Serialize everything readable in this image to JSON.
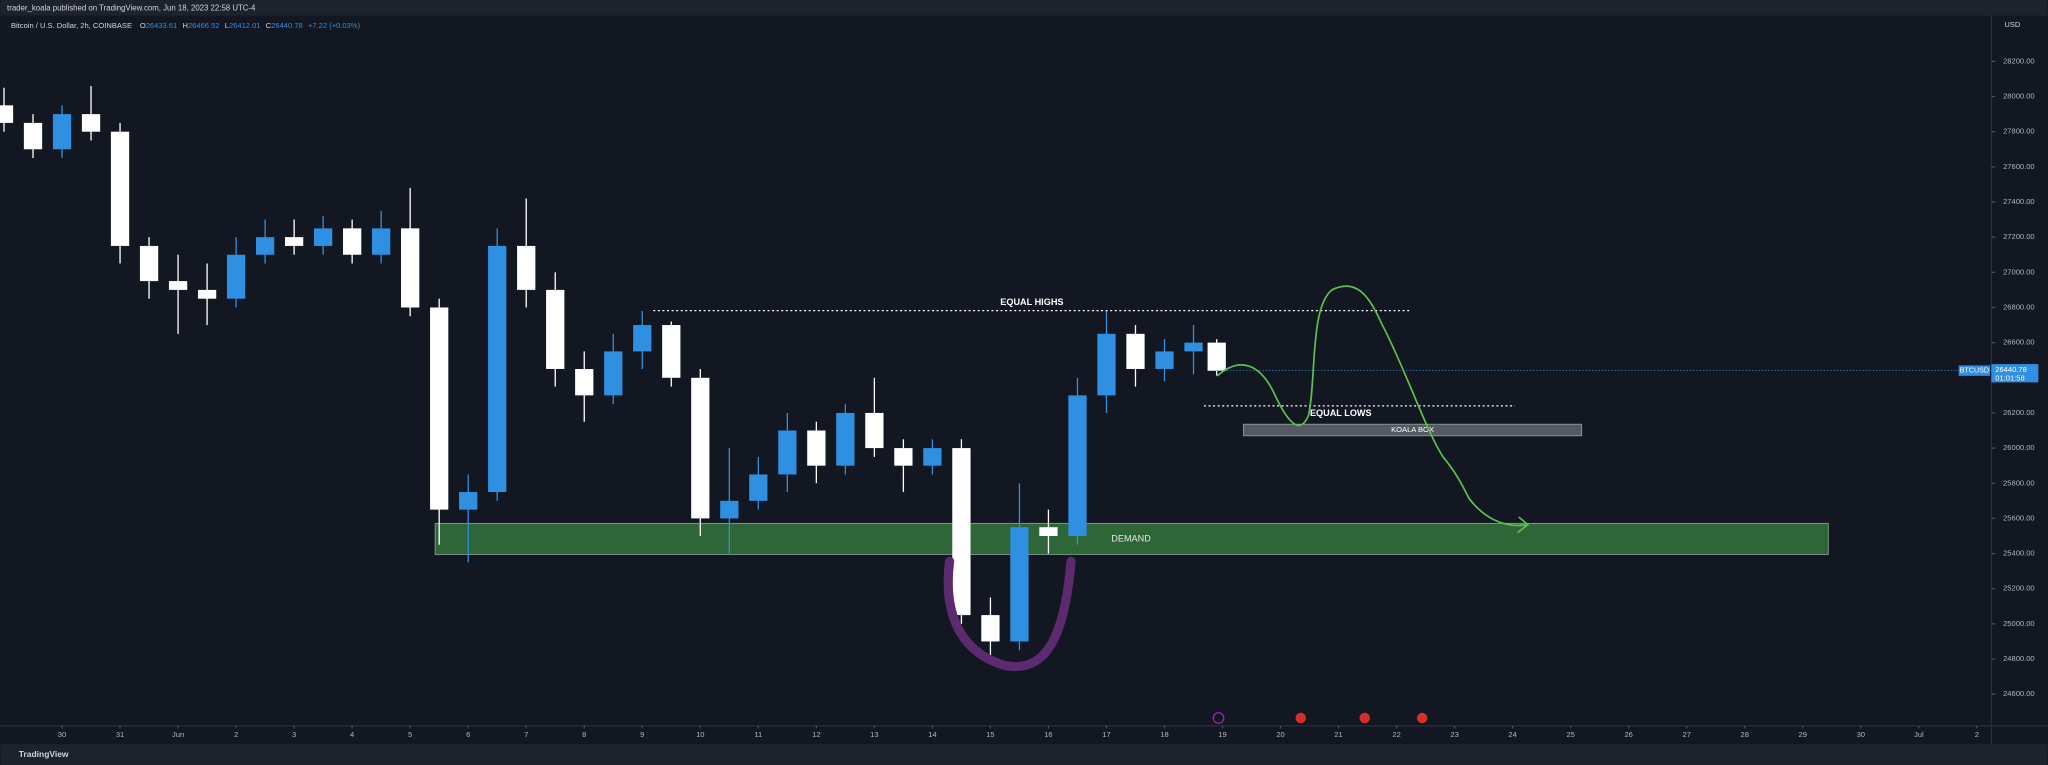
{
  "header": {
    "publisher": "trader_koala published on TradingView.com, Jun 18, 2023 22:58 UTC-4",
    "brand": "TradingView"
  },
  "chart_data": {
    "type": "candlestick",
    "title": "Bitcoin / U.S. Dollar, 2h, COINBASE",
    "legend": [
      {
        "label": "O",
        "value": "26433.61"
      },
      {
        "label": "H",
        "value": "26466.52"
      },
      {
        "label": "L",
        "value": "26412.01"
      },
      {
        "label": "C",
        "value": "26440.78"
      }
    ],
    "change": "+7.22 (+0.03%)",
    "currency": "USD",
    "symbol": "BTCUSD",
    "last_price": 26440.78,
    "countdown": "01:01:58",
    "up_color": "#2f8fe0",
    "down_color": "#ffffff",
    "xlim": [
      -1.06,
      33.25
    ],
    "ylim": [
      24420,
      28460
    ],
    "x": [
      -1,
      -0.5,
      0,
      0.5,
      1,
      1.5,
      2,
      2.5,
      3,
      3.5,
      4,
      4.5,
      5,
      5.5,
      6,
      6.5,
      7,
      7.5,
      8,
      8.5,
      9,
      9.5,
      10,
      10.5,
      11,
      11.5,
      12,
      12.5,
      13,
      13.5,
      14,
      14.5,
      15,
      15.5,
      16,
      16.5,
      17,
      17.5,
      18,
      18.5,
      19,
      19.5,
      19.9
    ],
    "ohlc": [
      [
        27950,
        28050,
        27800,
        27850
      ],
      [
        27850,
        27900,
        27650,
        27700
      ],
      [
        27700,
        27950,
        27650,
        27900
      ],
      [
        27900,
        28060,
        27750,
        27800
      ],
      [
        27800,
        27850,
        27050,
        27150
      ],
      [
        27150,
        27200,
        26850,
        26950
      ],
      [
        26950,
        27100,
        26650,
        26900
      ],
      [
        26900,
        27050,
        26700,
        26850
      ],
      [
        26850,
        27200,
        26800,
        27100
      ],
      [
        27100,
        27300,
        27050,
        27200
      ],
      [
        27200,
        27300,
        27100,
        27150
      ],
      [
        27150,
        27320,
        27100,
        27250
      ],
      [
        27250,
        27300,
        27050,
        27100
      ],
      [
        27100,
        27350,
        27050,
        27250
      ],
      [
        27250,
        27480,
        26750,
        26800
      ],
      [
        26800,
        26850,
        25450,
        25650
      ],
      [
        25650,
        25850,
        25350,
        25750
      ],
      [
        25750,
        27250,
        25700,
        27150
      ],
      [
        27150,
        27420,
        26800,
        26900
      ],
      [
        26900,
        27000,
        26350,
        26450
      ],
      [
        26450,
        26550,
        26150,
        26300
      ],
      [
        26300,
        26650,
        26250,
        26550
      ],
      [
        26550,
        26780,
        26450,
        26700
      ],
      [
        26700,
        26720,
        26350,
        26400
      ],
      [
        26400,
        26450,
        25500,
        25600
      ],
      [
        25600,
        26000,
        25400,
        25700
      ],
      [
        25700,
        25950,
        25650,
        25850
      ],
      [
        25850,
        26200,
        25750,
        26100
      ],
      [
        26100,
        26150,
        25800,
        25900
      ],
      [
        25900,
        26250,
        25850,
        26200
      ],
      [
        26200,
        26400,
        25950,
        26000
      ],
      [
        26000,
        26050,
        25750,
        25900
      ],
      [
        25900,
        26050,
        25850,
        26000
      ],
      [
        26000,
        26050,
        25000,
        25050
      ],
      [
        25050,
        25150,
        24800,
        24900
      ],
      [
        24900,
        25800,
        24850,
        25550
      ],
      [
        25550,
        25650,
        25400,
        25500
      ],
      [
        25500,
        26400,
        25450,
        26300
      ],
      [
        26300,
        26780,
        26200,
        26650
      ],
      [
        26650,
        26700,
        26350,
        26450
      ],
      [
        26450,
        26620,
        26380,
        26550
      ],
      [
        26550,
        26700,
        26420,
        26600
      ],
      [
        26600,
        26620,
        26412,
        26440
      ]
    ],
    "yticks": [
      {
        "value": 24600,
        "label": "24600.00"
      },
      {
        "value": 24800,
        "label": "24800.00"
      },
      {
        "value": 25000,
        "label": "25000.00"
      },
      {
        "value": 25200,
        "label": "25200.00"
      },
      {
        "value": 25400,
        "label": "25400.00"
      },
      {
        "value": 25600,
        "label": "25600.00"
      },
      {
        "value": 25800,
        "label": "25800.00"
      },
      {
        "value": 26000,
        "label": "26000.00"
      },
      {
        "value": 26200,
        "label": "26200.00"
      },
      {
        "value": 26400,
        "label": "26400.00"
      },
      {
        "value": 26600,
        "label": "26600.00"
      },
      {
        "value": 26800,
        "label": "26800.00"
      },
      {
        "value": 27000,
        "label": "27000.00"
      },
      {
        "value": 27200,
        "label": "27200.00"
      },
      {
        "value": 27400,
        "label": "27400.00"
      },
      {
        "value": 27600,
        "label": "27600.00"
      },
      {
        "value": 27800,
        "label": "27800.00"
      },
      {
        "value": 28000,
        "label": "28000.00"
      },
      {
        "value": 28200,
        "label": "28200.00"
      }
    ],
    "xticks": [
      {
        "value": 0,
        "label": "30"
      },
      {
        "value": 1,
        "label": "31"
      },
      {
        "value": 2,
        "label": "Jun"
      },
      {
        "value": 3,
        "label": "2"
      },
      {
        "value": 4,
        "label": "3"
      },
      {
        "value": 5,
        "label": "4"
      },
      {
        "value": 6,
        "label": "5"
      },
      {
        "value": 7,
        "label": "6"
      },
      {
        "value": 8,
        "label": "7"
      },
      {
        "value": 9,
        "label": "8"
      },
      {
        "value": 10,
        "label": "9"
      },
      {
        "value": 11,
        "label": "10"
      },
      {
        "value": 12,
        "label": "11"
      },
      {
        "value": 13,
        "label": "12"
      },
      {
        "value": 14,
        "label": "13"
      },
      {
        "value": 15,
        "label": "14"
      },
      {
        "value": 16,
        "label": "15"
      },
      {
        "value": 17,
        "label": "16"
      },
      {
        "value": 18,
        "label": "17"
      },
      {
        "value": 19,
        "label": "18"
      },
      {
        "value": 20,
        "label": "19"
      },
      {
        "value": 21,
        "label": "20"
      },
      {
        "value": 22,
        "label": "21"
      },
      {
        "value": 23,
        "label": "22"
      },
      {
        "value": 24,
        "label": "23"
      },
      {
        "value": 25,
        "label": "24"
      },
      {
        "value": 26,
        "label": "25"
      },
      {
        "value": 27,
        "label": "26"
      },
      {
        "value": 28,
        "label": "27"
      },
      {
        "value": 29,
        "label": "28"
      },
      {
        "value": 30,
        "label": "29"
      },
      {
        "value": 31,
        "label": "30"
      },
      {
        "value": 32,
        "label": "Jul"
      },
      {
        "value": 33,
        "label": "2"
      }
    ],
    "demand": {
      "label": "DEMAND",
      "ylim": [
        25395,
        25572
      ],
      "xlim": [
        6.43,
        30.44
      ],
      "color": "#2f6a3a"
    },
    "equal_highs": {
      "label": "EQUAL HIGHS",
      "y": 26782,
      "xlim": [
        10.19,
        23.24
      ]
    },
    "equal_lows": {
      "label": "EQUAL LOWS",
      "y": 26240,
      "xlim": [
        19.68,
        25.04
      ]
    },
    "koala_box": {
      "label": "KOALA BOX",
      "ylim": [
        26070,
        26136
      ],
      "xlim": [
        20.36,
        26.19
      ],
      "color": "#5d606b"
    }
  }
}
